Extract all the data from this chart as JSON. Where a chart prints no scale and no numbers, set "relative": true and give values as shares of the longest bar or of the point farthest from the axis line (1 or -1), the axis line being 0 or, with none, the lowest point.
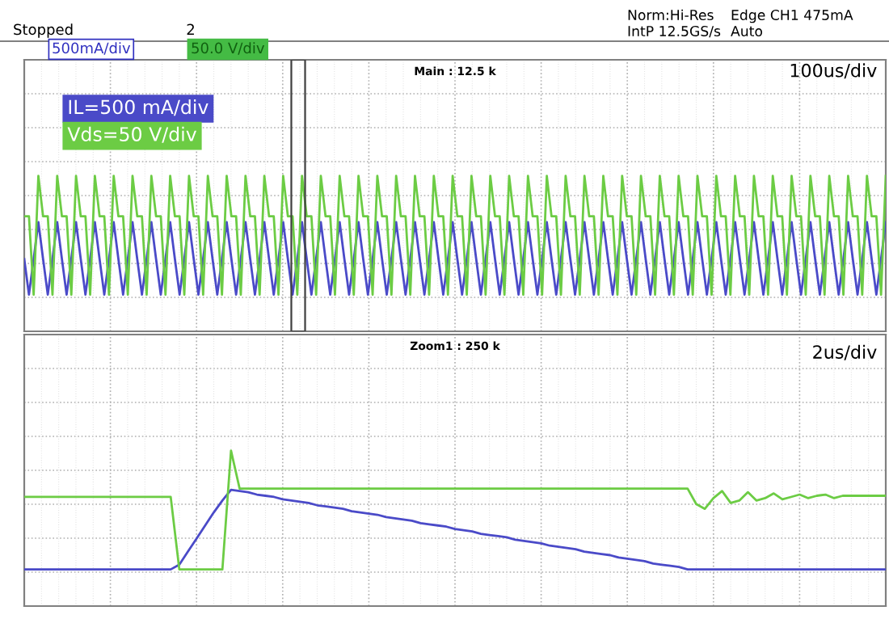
{
  "chart_data": [
    {
      "type": "line",
      "relative": true,
      "grid": true,
      "legend": "top left",
      "annotations": [
        "Stopped",
        "2",
        "Norm:Hi-Res",
        "Edge CH1 475mA",
        "IntP 12.5GS/s",
        "Auto",
        "500mA/div",
        "50.0 V/div",
        "Main : 12.5 k",
        "100us/div"
      ],
      "categories": [
        null,
        null,
        null,
        null,
        null,
        null,
        null,
        null,
        null,
        null,
        null,
        null,
        null,
        null,
        null,
        null,
        null,
        null,
        null,
        null,
        null,
        null,
        null,
        null,
        null,
        null,
        null,
        null,
        null,
        null,
        null,
        null,
        null,
        null,
        null,
        null,
        null,
        null,
        null,
        null,
        null,
        null,
        null,
        null,
        null,
        null,
        null,
        null,
        null,
        null,
        null,
        null,
        null,
        null,
        null,
        null,
        null,
        null,
        null,
        null,
        null,
        null,
        null,
        null,
        null,
        null,
        null,
        null,
        null,
        null,
        null,
        null,
        null,
        null,
        null,
        null,
        null,
        null,
        null,
        null,
        null,
        null,
        null,
        null,
        null,
        null,
        null,
        null,
        null,
        null,
        null,
        null,
        null,
        null,
        null,
        null,
        null,
        null,
        null,
        null,
        null,
        null,
        null,
        null,
        null,
        null,
        null,
        null,
        null,
        null,
        null,
        null,
        null,
        null,
        null,
        null,
        null,
        null,
        null,
        null,
        null,
        null,
        null,
        null,
        null,
        null,
        null,
        null,
        null,
        null,
        null,
        null,
        null,
        null,
        null,
        null,
        null,
        null,
        null,
        null,
        null,
        null,
        null,
        null,
        null,
        null,
        null,
        null,
        null,
        null,
        null,
        null,
        null,
        null,
        null,
        null,
        null,
        null,
        null,
        null,
        null,
        null,
        null,
        null,
        null,
        null,
        null,
        null,
        null,
        null,
        null,
        null,
        null,
        null,
        null,
        null,
        null,
        null,
        null,
        null,
        null,
        null,
        null,
        null
      ],
      "series": [
        {
          "name": "IL=500 mA/div",
          "color": "#4a4ac8",
          "values": [
            0.3,
            0,
            0.3,
            0.61,
            0.3,
            0,
            0.3,
            0.61,
            0.3,
            0,
            0.3,
            0.61,
            0.3,
            0,
            0.3,
            0.61,
            0.3,
            0,
            0.3,
            0.61,
            0.3,
            0,
            0.3,
            0.61,
            0.3,
            0,
            0.3,
            0.61,
            0.3,
            0,
            0.3,
            0.61,
            0.3,
            0,
            0.3,
            0.61,
            0.3,
            0,
            0.3,
            0.61,
            0.3,
            0,
            0.3,
            0.61,
            0.3,
            0,
            0.3,
            0.61,
            0.3,
            0,
            0.3,
            0.61,
            0.3,
            0,
            0.3,
            0.61,
            0.3,
            0,
            0.3,
            0.61,
            0.3,
            0,
            0.3,
            0.61,
            0.3,
            0,
            0.3,
            0.61,
            0.3,
            0,
            0.3,
            0.61,
            0.3,
            0,
            0.3,
            0.61,
            0.3,
            0,
            0.3,
            0.61,
            0.3,
            0,
            0.3,
            0.61,
            0.3,
            0,
            0.3,
            0.61,
            0.3,
            0,
            0.3,
            0.61,
            0.3,
            0,
            0.3,
            0.61,
            0.3,
            0,
            0.3,
            0.61,
            0.3,
            0,
            0.3,
            0.61,
            0.3,
            0,
            0.3,
            0.61,
            0.3,
            0,
            0.3,
            0.61,
            0.3,
            0,
            0.3,
            0.61,
            0.3,
            0,
            0.3,
            0.61,
            0.3,
            0,
            0.3,
            0.61,
            0.3,
            0,
            0.3,
            0.61,
            0.3,
            0,
            0.3,
            0.61,
            0.3,
            0,
            0.3,
            0.61,
            0.3,
            0,
            0.3,
            0.61,
            0.3,
            0,
            0.3,
            0.61,
            0.3,
            0,
            0.3,
            0.61,
            0.3,
            0,
            0.3,
            0.61,
            0.3,
            0,
            0.3,
            0.61,
            0.3,
            0,
            0.3,
            0.61,
            0.3,
            0,
            0.3,
            0.61,
            0.3,
            0,
            0.3,
            0.61,
            0.3,
            0,
            0.3,
            0.61,
            0.3,
            0,
            0.3,
            0.61,
            0.3,
            0,
            0.3,
            0.61,
            0.3,
            0,
            0.3,
            0.61
          ]
        },
        {
          "name": "Vds=50 V/div",
          "color": "#6ccc44",
          "values": [
            0.66,
            0.66,
            0,
            1,
            0.66,
            0.66,
            0,
            1,
            0.66,
            0.66,
            0,
            1,
            0.66,
            0.66,
            0,
            1,
            0.66,
            0.66,
            0,
            1,
            0.66,
            0.66,
            0,
            1,
            0.66,
            0.66,
            0,
            1,
            0.66,
            0.66,
            0,
            1,
            0.66,
            0.66,
            0,
            1,
            0.66,
            0.66,
            0,
            1,
            0.66,
            0.66,
            0,
            1,
            0.66,
            0.66,
            0,
            1,
            0.66,
            0.66,
            0,
            1,
            0.66,
            0.66,
            0,
            1,
            0.66,
            0.66,
            0,
            1,
            0.66,
            0.66,
            0,
            1,
            0.66,
            0.66,
            0,
            1,
            0.66,
            0.66,
            0,
            1,
            0.66,
            0.66,
            0,
            1,
            0.66,
            0.66,
            0,
            1,
            0.66,
            0.66,
            0,
            1,
            0.66,
            0.66,
            0,
            1,
            0.66,
            0.66,
            0,
            1,
            0.66,
            0.66,
            0,
            1,
            0.66,
            0.66,
            0,
            1,
            0.66,
            0.66,
            0,
            1,
            0.66,
            0.66,
            0,
            1,
            0.66,
            0.66,
            0,
            1,
            0.66,
            0.66,
            0,
            1,
            0.66,
            0.66,
            0,
            1,
            0.66,
            0.66,
            0,
            1,
            0.66,
            0.66,
            0,
            1,
            0.66,
            0.66,
            0,
            1,
            0.66,
            0.66,
            0,
            1,
            0.66,
            0.66,
            0,
            1,
            0.66,
            0.66,
            0,
            1,
            0.66,
            0.66,
            0,
            1,
            0.66,
            0.66,
            0,
            1,
            0.66,
            0.66,
            0,
            1,
            0.66,
            0.66,
            0,
            1,
            0.66,
            0.66,
            0,
            1,
            0.66,
            0.66,
            0,
            1,
            0.66,
            0.66,
            0,
            1,
            0.66,
            0.66,
            0,
            1,
            0.66,
            0.66,
            0,
            1,
            0.66,
            0.66,
            0,
            1
          ]
        }
      ]
    },
    {
      "type": "line",
      "relative": true,
      "grid": true,
      "annotations": [
        "Zoom1 : 250 k",
        "2us/div"
      ],
      "categories": [
        null,
        null,
        null,
        null,
        null,
        null,
        null,
        null,
        null,
        null,
        null,
        null,
        null,
        null,
        null,
        null,
        null,
        null,
        null,
        null,
        null,
        null,
        null,
        null,
        null,
        null,
        null,
        null,
        null,
        null,
        null,
        null,
        null,
        null,
        null,
        null,
        null,
        null,
        null,
        null,
        null,
        null,
        null,
        null,
        null,
        null,
        null,
        null,
        null,
        null,
        null,
        null,
        null,
        null,
        null,
        null,
        null,
        null,
        null,
        null,
        null,
        null,
        null,
        null,
        null,
        null,
        null,
        null,
        null,
        null,
        null,
        null,
        null,
        null,
        null,
        null,
        null,
        null,
        null,
        null,
        null,
        null,
        null,
        null,
        null,
        null,
        null,
        null,
        null,
        null,
        null,
        null,
        null,
        null,
        null,
        null,
        null,
        null,
        null,
        null,
        null
      ],
      "series": [
        {
          "color": "#4a4ac8",
          "values": [
            0,
            0,
            0,
            0,
            0,
            0,
            0,
            0,
            0,
            0,
            0,
            0,
            0,
            0,
            0,
            0,
            0,
            0,
            0.04,
            0.15,
            0.26,
            0.37,
            0.48,
            0.58,
            0.67,
            0.66,
            0.65,
            0.63,
            0.62,
            0.61,
            0.59,
            0.58,
            0.57,
            0.56,
            0.54,
            0.53,
            0.52,
            0.51,
            0.49,
            0.48,
            0.47,
            0.46,
            0.44,
            0.43,
            0.42,
            0.41,
            0.39,
            0.38,
            0.37,
            0.36,
            0.34,
            0.33,
            0.32,
            0.3,
            0.29,
            0.28,
            0.27,
            0.25,
            0.24,
            0.23,
            0.22,
            0.2,
            0.19,
            0.18,
            0.17,
            0.15,
            0.14,
            0.13,
            0.12,
            0.1,
            0.09,
            0.08,
            0.07,
            0.05,
            0.04,
            0.03,
            0.02,
            0,
            0,
            0,
            0,
            0,
            0,
            0,
            0,
            0,
            0,
            0,
            0,
            0,
            0,
            0,
            0,
            0,
            0,
            0,
            0,
            0,
            0,
            0,
            0
          ]
        },
        {
          "color": "#6ccc44",
          "values": [
            0.61,
            0.61,
            0.61,
            0.61,
            0.61,
            0.61,
            0.61,
            0.61,
            0.61,
            0.61,
            0.61,
            0.61,
            0.61,
            0.61,
            0.61,
            0.61,
            0.61,
            0.61,
            0,
            0,
            0,
            0,
            0,
            0,
            1,
            0.68,
            0.68,
            0.68,
            0.68,
            0.68,
            0.68,
            0.68,
            0.68,
            0.68,
            0.68,
            0.68,
            0.68,
            0.68,
            0.68,
            0.68,
            0.68,
            0.68,
            0.68,
            0.68,
            0.68,
            0.68,
            0.68,
            0.68,
            0.68,
            0.68,
            0.68,
            0.68,
            0.68,
            0.68,
            0.68,
            0.68,
            0.68,
            0.68,
            0.68,
            0.68,
            0.68,
            0.68,
            0.68,
            0.68,
            0.68,
            0.68,
            0.68,
            0.68,
            0.68,
            0.68,
            0.68,
            0.68,
            0.68,
            0.68,
            0.68,
            0.68,
            0.68,
            0.68,
            0.55,
            0.51,
            0.6,
            0.66,
            0.56,
            0.58,
            0.65,
            0.58,
            0.6,
            0.64,
            0.59,
            0.61,
            0.63,
            0.6,
            0.62,
            0.63,
            0.6,
            0.62,
            0.62,
            0.62,
            0.62,
            0.62,
            0.62
          ]
        }
      ]
    }
  ]
}
